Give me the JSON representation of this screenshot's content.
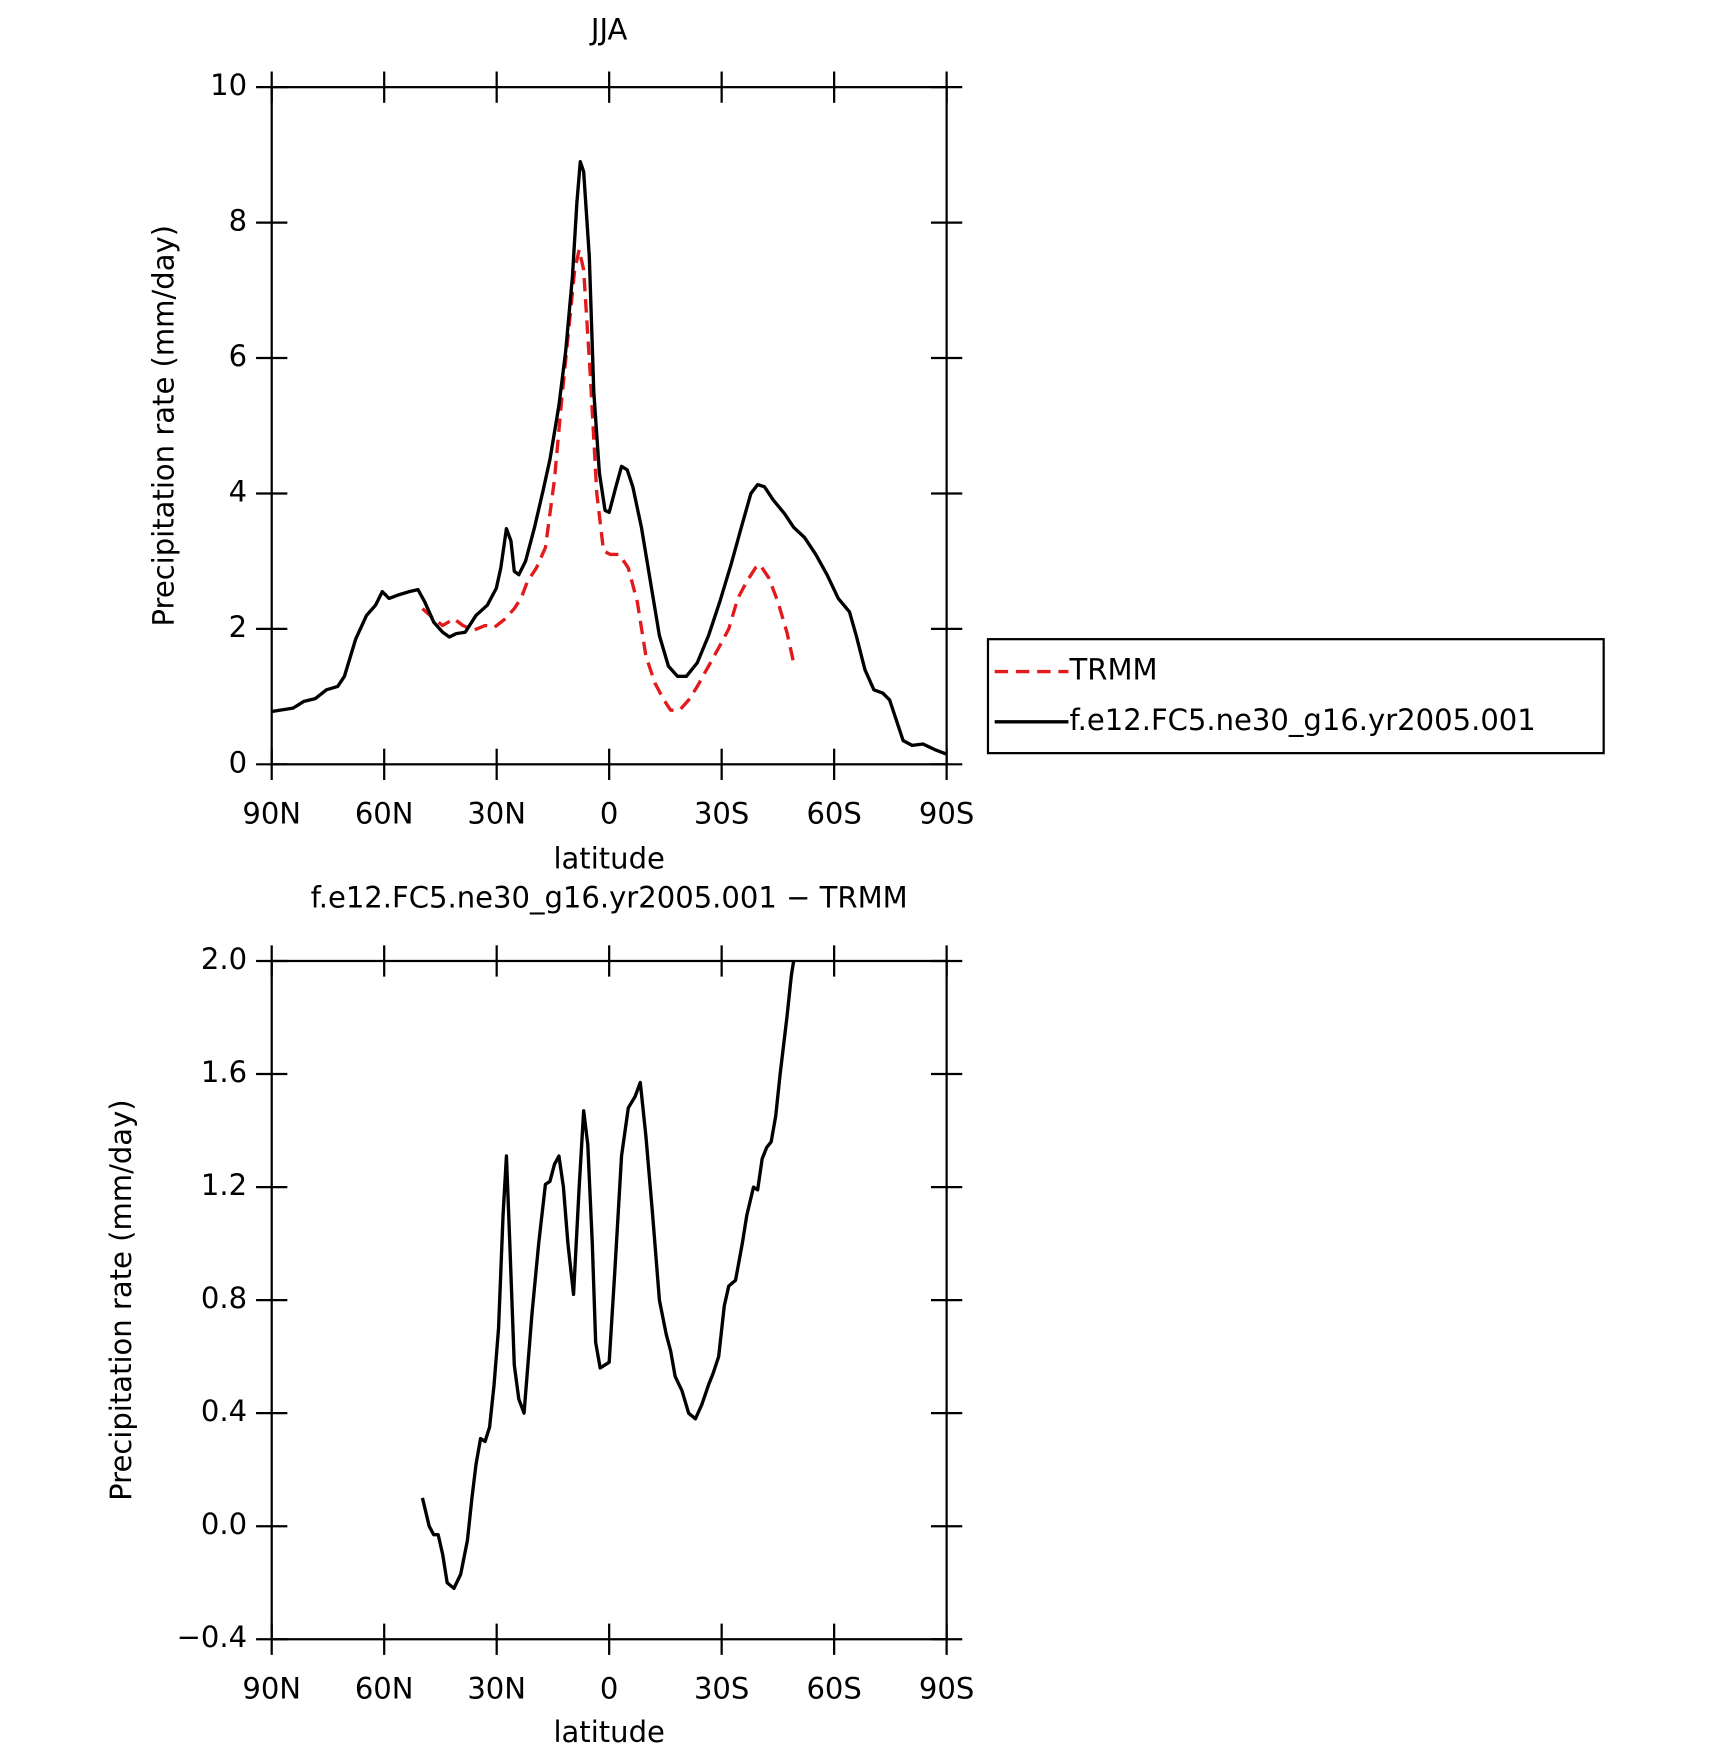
{
  "chart_data": [
    {
      "type": "line",
      "title": "JJA",
      "xlabel": "latitude",
      "ylabel": "Precipitation rate (mm/day)",
      "xlim": [
        90,
        -90
      ],
      "xticks": [
        {
          "value": 90,
          "label": "90N"
        },
        {
          "value": 60,
          "label": "60N"
        },
        {
          "value": 30,
          "label": "30N"
        },
        0,
        {
          "value": -30,
          "label": "30S"
        },
        {
          "value": -60,
          "label": "60S"
        },
        {
          "value": -90,
          "label": "90S"
        }
      ],
      "ylim": [
        0,
        10
      ],
      "yticks": [
        0,
        2,
        4,
        6,
        8,
        10
      ],
      "legend": "outside right",
      "series": [
        {
          "name": "TRMM",
          "color": "#e31a1c",
          "linestyle": "dashed",
          "x": [
            49.8,
            46.8,
            44.4,
            41.4,
            39.0,
            36.1,
            33.1,
            30.7,
            27.7,
            25.3,
            23.5,
            21.8,
            19.4,
            17.0,
            14.6,
            12.8,
            11.0,
            9.2,
            8.0,
            6.8,
            5.1,
            3.3,
            1.5,
            -0.3,
            -2.7,
            -5.1,
            -7.5,
            -9.8,
            -12.2,
            -14.6,
            -16.4,
            -18.8,
            -21.2,
            -23.5,
            -26.5,
            -29.5,
            -31.9,
            -34.3,
            -36.7,
            -39.0,
            -40.2,
            -42.6,
            -45.0,
            -47.4,
            -49.2
          ],
          "values": [
            2.3,
            2.15,
            2.05,
            2.15,
            2.05,
            1.98,
            2.05,
            2.02,
            2.15,
            2.3,
            2.45,
            2.7,
            2.9,
            3.2,
            4.2,
            5.3,
            6.3,
            7.3,
            7.6,
            7.3,
            5.8,
            4.0,
            3.15,
            3.1,
            3.1,
            2.9,
            2.4,
            1.6,
            1.2,
            0.95,
            0.8,
            0.8,
            0.95,
            1.15,
            1.45,
            1.75,
            2.0,
            2.45,
            2.7,
            2.9,
            2.95,
            2.75,
            2.4,
            1.95,
            1.5
          ]
        },
        {
          "name": "f.e12.FC5.ne30_g16.yr2005.001",
          "color": "#000000",
          "linestyle": "solid",
          "x": [
            90,
            84.3,
            81.4,
            78.4,
            75.4,
            72.4,
            70.6,
            67.6,
            64.7,
            62.3,
            60.5,
            58.7,
            56.3,
            53.3,
            51.0,
            49.2,
            46.8,
            44.4,
            42.6,
            40.8,
            38.4,
            35.5,
            32.5,
            30.1,
            28.9,
            27.4,
            26.2,
            25.3,
            24.1,
            22.3,
            19.9,
            17.6,
            15.8,
            13.4,
            11.6,
            9.8,
            8.6,
            7.7,
            6.8,
            5.3,
            4.1,
            2.6,
            1.1,
            0,
            -1.8,
            -3.3,
            -4.8,
            -6.3,
            -8.6,
            -11.0,
            -13.4,
            -15.8,
            -18.2,
            -20.6,
            -23.5,
            -26.5,
            -29.5,
            -32.5,
            -35.5,
            -37.8,
            -39.6,
            -41.4,
            -43.8,
            -46.8,
            -49.2,
            -52.1,
            -55.1,
            -58.1,
            -61.1,
            -64.1,
            -65.9,
            -68.2,
            -70.6,
            -73.0,
            -74.8,
            -76.6,
            -78.4,
            -80.8,
            -83.7,
            -86.7,
            -90
          ],
          "values": [
            0.78,
            0.83,
            0.93,
            0.97,
            1.1,
            1.15,
            1.3,
            1.85,
            2.2,
            2.35,
            2.55,
            2.45,
            2.5,
            2.55,
            2.58,
            2.4,
            2.1,
            1.95,
            1.88,
            1.93,
            1.95,
            2.2,
            2.35,
            2.6,
            2.9,
            3.48,
            3.3,
            2.85,
            2.8,
            3.0,
            3.5,
            4.05,
            4.5,
            5.3,
            6.1,
            7.2,
            8.3,
            8.9,
            8.75,
            7.5,
            5.5,
            4.3,
            3.75,
            3.72,
            4.1,
            4.4,
            4.35,
            4.1,
            3.5,
            2.7,
            1.9,
            1.45,
            1.3,
            1.3,
            1.5,
            1.9,
            2.4,
            2.95,
            3.55,
            4.0,
            4.13,
            4.1,
            3.9,
            3.7,
            3.5,
            3.35,
            3.1,
            2.8,
            2.45,
            2.25,
            1.9,
            1.4,
            1.1,
            1.05,
            0.95,
            0.65,
            0.35,
            0.28,
            0.3,
            0.22,
            0.15
          ]
        }
      ]
    },
    {
      "type": "line",
      "title": "f.e12.FC5.ne30_g16.yr2005.001 − TRMM",
      "xlabel": "latitude",
      "ylabel": "Precipitation rate (mm/day)",
      "xlim": [
        90,
        -90
      ],
      "xticks": [
        {
          "value": 90,
          "label": "90N"
        },
        {
          "value": 60,
          "label": "60N"
        },
        {
          "value": 30,
          "label": "30N"
        },
        0,
        {
          "value": -30,
          "label": "30S"
        },
        {
          "value": -60,
          "label": "60S"
        },
        {
          "value": -90,
          "label": "90S"
        }
      ],
      "ylim": [
        -0.4,
        2.0
      ],
      "yticks": [
        {
          "value": -0.4,
          "label": "−0.4"
        },
        {
          "value": 0,
          "label": "0.0"
        },
        0.4,
        0.8,
        1.2,
        1.6,
        {
          "value": 2.0,
          "label": "2.0"
        }
      ],
      "series": [
        {
          "color": "#000000",
          "linestyle": "solid",
          "x": [
            49.8,
            48.0,
            46.8,
            45.6,
            44.4,
            43.2,
            41.4,
            39.6,
            37.8,
            36.6,
            35.5,
            34.3,
            33.1,
            31.9,
            30.7,
            29.5,
            28.3,
            27.4,
            26.5,
            25.3,
            24.1,
            22.7,
            20.6,
            18.8,
            17.0,
            15.8,
            14.6,
            13.4,
            12.2,
            11.0,
            9.5,
            8.0,
            6.8,
            5.7,
            4.5,
            3.6,
            2.4,
            0,
            -1.5,
            -3.3,
            -5.1,
            -6.9,
            -8.3,
            -9.8,
            -11.6,
            -13.4,
            -15.2,
            -16.4,
            -17.6,
            -19.4,
            -21.2,
            -23.0,
            -24.7,
            -26.5,
            -27.7,
            -29.2,
            -30.7,
            -31.9,
            -33.7,
            -35.5,
            -36.7,
            -38.5,
            -39.6,
            -40.8,
            -42.0,
            -43.2,
            -44.4,
            -45.6,
            -47.4,
            -48.6,
            -49.2
          ],
          "values": [
            0.1,
            0.0,
            -0.03,
            -0.03,
            -0.1,
            -0.2,
            -0.22,
            -0.17,
            -0.05,
            0.1,
            0.22,
            0.31,
            0.3,
            0.35,
            0.5,
            0.7,
            1.1,
            1.31,
            1.0,
            0.57,
            0.45,
            0.4,
            0.75,
            1.0,
            1.21,
            1.22,
            1.28,
            1.31,
            1.2,
            1.0,
            0.82,
            1.2,
            1.47,
            1.35,
            1.0,
            0.65,
            0.56,
            0.58,
            0.9,
            1.31,
            1.48,
            1.52,
            1.57,
            1.38,
            1.1,
            0.8,
            0.68,
            0.62,
            0.53,
            0.48,
            0.4,
            0.38,
            0.43,
            0.5,
            0.54,
            0.6,
            0.78,
            0.85,
            0.87,
            1.0,
            1.1,
            1.2,
            1.19,
            1.3,
            1.34,
            1.36,
            1.45,
            1.6,
            1.8,
            1.95,
            2.0
          ]
        }
      ]
    }
  ]
}
